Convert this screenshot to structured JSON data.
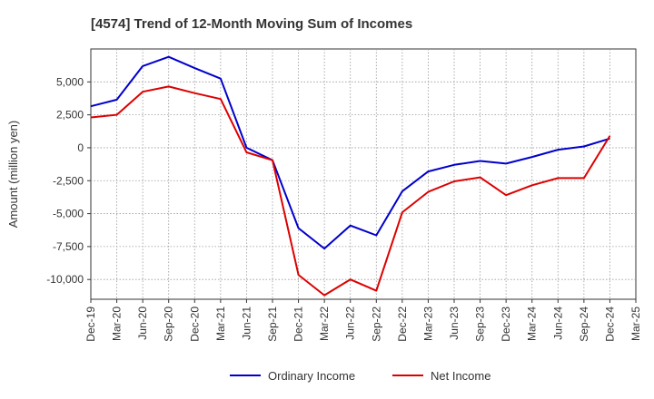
{
  "chart_data": {
    "type": "line",
    "title": "[4574]  Trend of 12-Month Moving Sum of Incomes",
    "ylabel": "Amount (million yen)",
    "xlabel": "",
    "ylim": [
      -11500,
      7500
    ],
    "yticks": [
      5000,
      2500,
      0,
      -2500,
      -5000,
      -7500,
      -10000
    ],
    "ytick_labels": [
      "5,000",
      "2,500",
      "0",
      "-2,500",
      "-5,000",
      "-7,500",
      "-10,000"
    ],
    "grid": true,
    "legend_position": "bottom",
    "categories": [
      "Dec-19",
      "Mar-20",
      "Jun-20",
      "Sep-20",
      "Dec-20",
      "Mar-21",
      "Jun-21",
      "Sep-21",
      "Dec-21",
      "Mar-22",
      "Jun-22",
      "Sep-22",
      "Dec-22",
      "Mar-23",
      "Jun-23",
      "Sep-23",
      "Dec-23",
      "Mar-24",
      "Jun-24",
      "Sep-24",
      "Dec-24",
      "Mar-25"
    ],
    "series": [
      {
        "name": "Ordinary Income",
        "color": "#0000cc",
        "values": [
          3150,
          3650,
          6200,
          6900,
          6050,
          5250,
          0,
          -950,
          -6100,
          -7650,
          -5900,
          -6650,
          -3300,
          -1800,
          -1300,
          -1000,
          -1200,
          -700,
          -150,
          100,
          700,
          null
        ]
      },
      {
        "name": "Net Income",
        "color": "#dd0000",
        "values": [
          2300,
          2500,
          4250,
          4650,
          4150,
          3700,
          -350,
          -950,
          -9650,
          -11200,
          -10000,
          -10850,
          -4900,
          -3350,
          -2550,
          -2250,
          -3600,
          -2850,
          -2300,
          -2300,
          900,
          null
        ]
      }
    ]
  }
}
